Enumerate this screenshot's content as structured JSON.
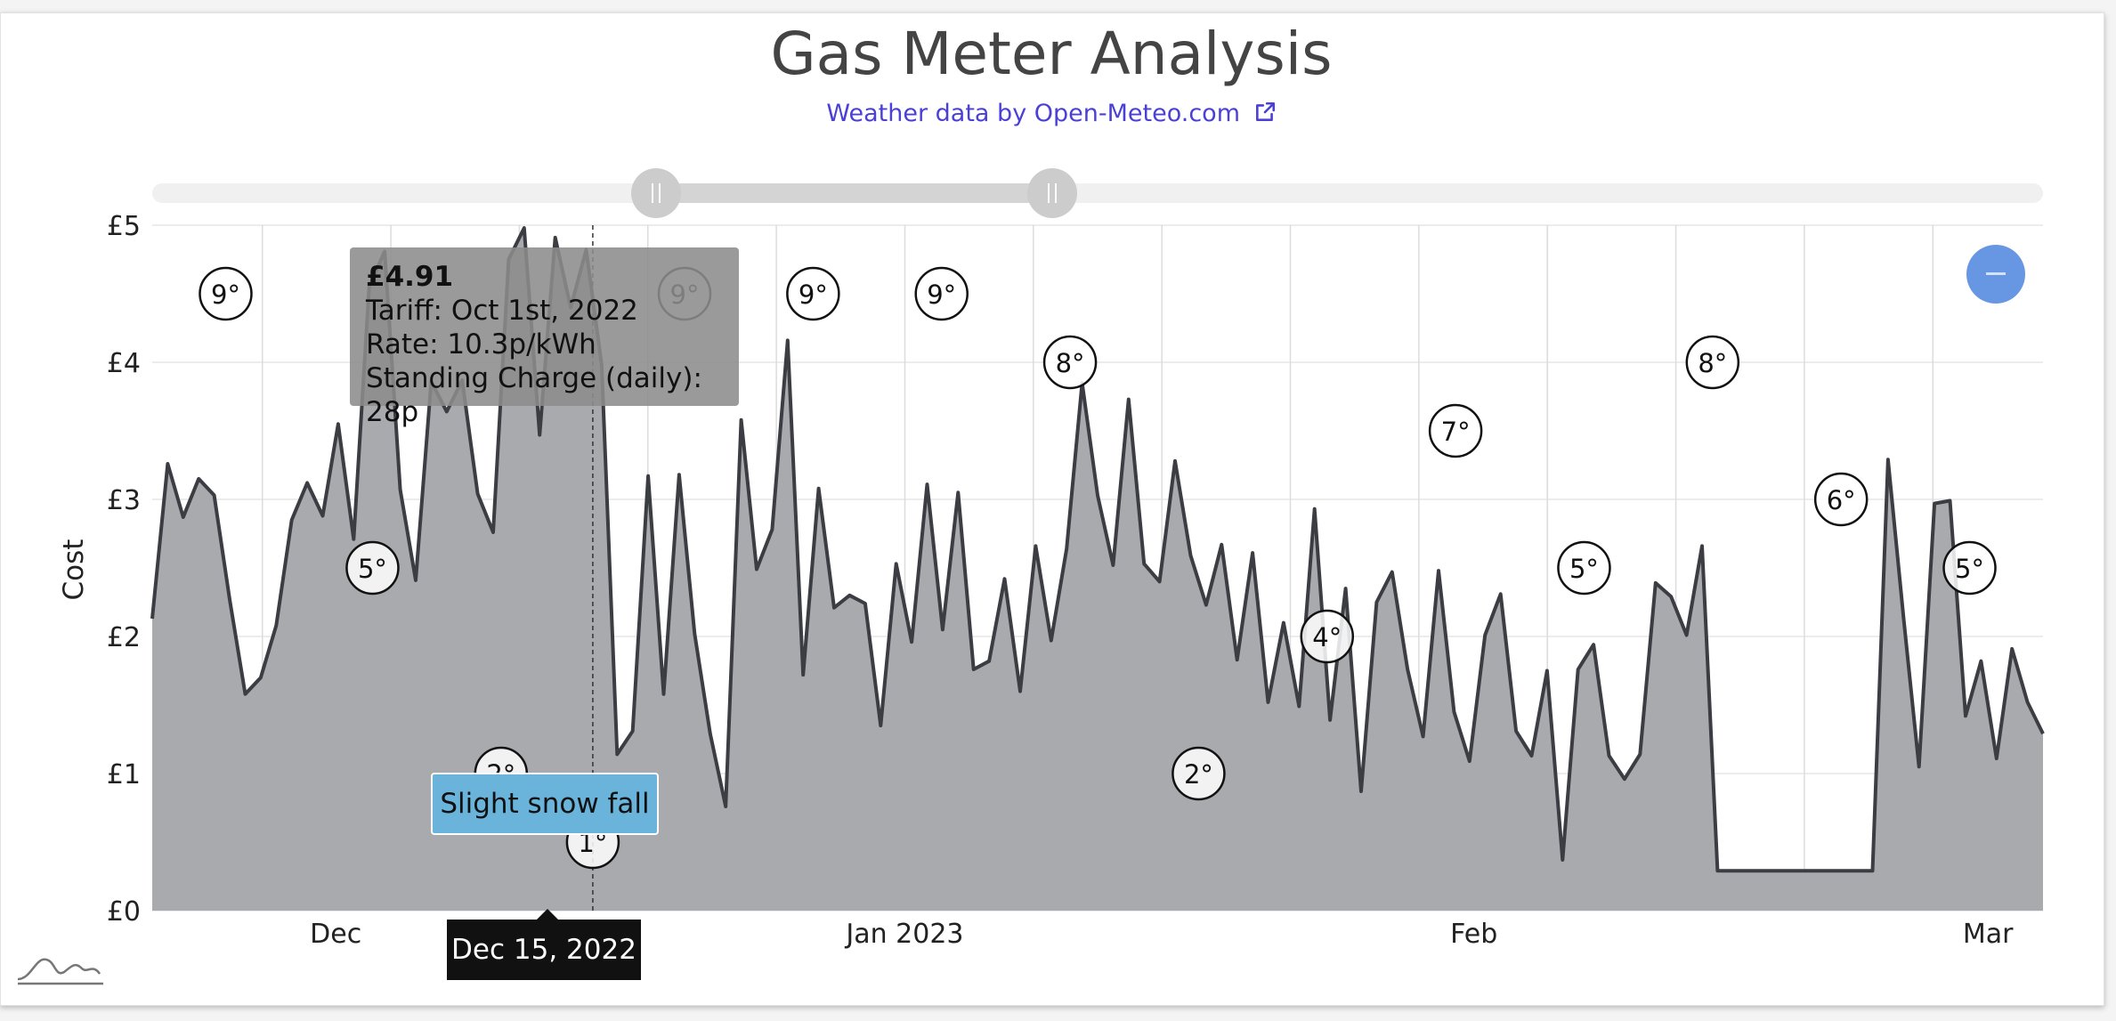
{
  "header": {
    "title": "Gas Meter Analysis",
    "subtitle": "Weather data by Open-Meteo.com"
  },
  "tooltip": {
    "price": "£4.91",
    "tariff": "Tariff: Oct 1st, 2022",
    "rate": "Rate: 10.3p/kWh",
    "standing_charge": "Standing Charge (daily): 28p"
  },
  "weather_tooltip": "Slight snow fall",
  "crosshair_date": "Dec 15, 2022",
  "chart_data": {
    "type": "area",
    "ylabel": "Cost",
    "ylim": [
      0,
      5
    ],
    "yticks": [
      "£0",
      "£1",
      "£2",
      "£3",
      "£4",
      "£5"
    ],
    "ytick_values": [
      0,
      1,
      2,
      3,
      4,
      5
    ],
    "x_start": "2022-11-21",
    "x_end": "2023-03-04",
    "xticks": [
      {
        "label": "Dec",
        "date": "2022-12-01"
      },
      {
        "label": "Jan 2023",
        "date": "2023-01-01"
      },
      {
        "label": "Feb",
        "date": "2023-02-01"
      },
      {
        "label": "Mar",
        "date": "2023-03-01"
      }
    ],
    "grid": true,
    "crosshair_x": "2022-12-15",
    "series": [
      {
        "values": [
          2.13,
          3.26,
          2.87,
          3.15,
          3.03,
          2.27,
          1.58,
          1.7,
          2.08,
          2.85,
          3.12,
          2.88,
          3.55,
          2.71,
          4.55,
          4.81,
          3.07,
          2.41,
          3.86,
          3.64,
          3.87,
          3.04,
          2.76,
          4.75,
          4.98,
          3.47,
          4.91,
          4.4,
          4.82,
          3.98,
          1.14,
          1.31,
          3.17,
          1.58,
          3.18,
          2.02,
          1.29,
          0.76,
          3.58,
          2.49,
          2.78,
          4.16,
          1.72,
          3.08,
          2.21,
          2.3,
          2.24,
          1.35,
          2.53,
          1.96,
          3.11,
          2.05,
          3.05,
          1.76,
          1.82,
          2.42,
          1.6,
          2.66,
          1.97,
          2.64,
          3.85,
          3.03,
          2.52,
          3.73,
          2.53,
          2.4,
          3.28,
          2.59,
          2.23,
          2.67,
          1.83,
          2.61,
          1.52,
          2.1,
          1.49,
          2.93,
          1.39,
          2.35,
          0.87,
          2.25,
          2.47,
          1.76,
          1.27,
          2.48,
          1.45,
          1.09,
          2.01,
          2.31,
          1.31,
          1.13,
          1.75,
          0.37,
          1.76,
          1.94,
          1.13,
          0.96,
          1.14,
          2.39,
          2.29,
          2.01,
          2.66,
          0.29,
          0.29,
          0.29,
          0.29,
          0.29,
          0.29,
          0.29,
          0.29,
          0.29,
          0.29,
          0.29,
          3.29,
          2.14,
          1.05,
          2.97,
          2.99,
          1.42,
          1.82,
          1.11,
          1.91,
          1.52,
          1.29
        ]
      }
    ],
    "weather_markers": [
      {
        "date": "2022-11-25",
        "temp": "9°",
        "value": 4.5
      },
      {
        "date": "2022-12-03",
        "temp": "5°",
        "value": 2.5
      },
      {
        "date": "2022-12-10",
        "temp": "2°",
        "value": 1.0
      },
      {
        "date": "2022-12-15",
        "temp": "1°",
        "value": 0.5
      },
      {
        "date": "2022-12-20",
        "temp": "9°",
        "value": 4.5
      },
      {
        "date": "2022-12-27",
        "temp": "9°",
        "value": 4.5
      },
      {
        "date": "2023-01-03",
        "temp": "9°",
        "value": 4.5
      },
      {
        "date": "2023-01-10",
        "temp": "8°",
        "value": 4.0
      },
      {
        "date": "2023-01-17",
        "temp": "2°",
        "value": 1.0
      },
      {
        "date": "2023-01-24",
        "temp": "4°",
        "value": 2.0
      },
      {
        "date": "2023-01-31",
        "temp": "7°",
        "value": 3.5
      },
      {
        "date": "2023-02-07",
        "temp": "5°",
        "value": 2.5
      },
      {
        "date": "2023-02-14",
        "temp": "8°",
        "value": 4.0
      },
      {
        "date": "2023-02-21",
        "temp": "6°",
        "value": 3.0
      },
      {
        "date": "2023-02-28",
        "temp": "5°",
        "value": 2.5
      },
      {
        "date": "2023-03-07",
        "temp": "5°",
        "value": 2.5
      },
      {
        "date": "2023-03-14",
        "temp": "9°",
        "value": 4.5
      }
    ]
  },
  "colors": {
    "area_fill": "#a9aaae",
    "line": "#3b3d42",
    "subtitle_link": "#4a3fd6",
    "tooltip_bg": "#8c8c8c",
    "weather_label_bg": "#6ab4dc",
    "fab": "#5b8fe0"
  },
  "icons": {
    "subtitle_link_icon": "external-link-icon",
    "logo": "chart-logo-icon",
    "floating_button": "minus-icon"
  }
}
